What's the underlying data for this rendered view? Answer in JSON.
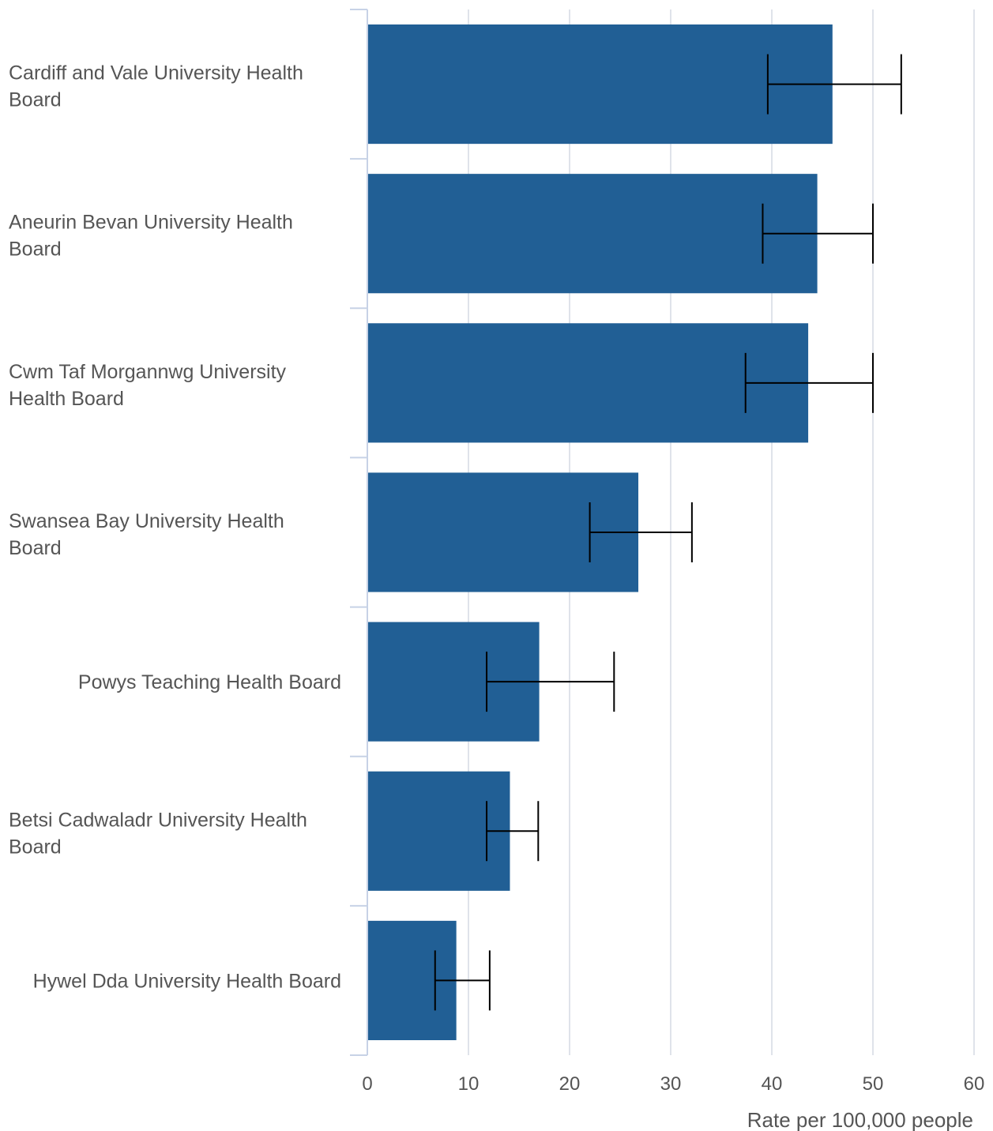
{
  "chart_data": {
    "type": "bar",
    "orientation": "horizontal",
    "categories": [
      [
        "Cardiff and Vale University Health",
        "Board"
      ],
      [
        "Aneurin Bevan University Health",
        "Board"
      ],
      [
        "Cwm Taf Morgannwg University",
        "Health Board"
      ],
      [
        "Swansea Bay University Health",
        "Board"
      ],
      [
        "Powys Teaching Health Board"
      ],
      [
        "Betsi Cadwaladr University Health",
        "Board"
      ],
      [
        "Hywel Dda University Health Board"
      ]
    ],
    "values": [
      46.0,
      44.5,
      43.6,
      26.8,
      17.0,
      14.1,
      8.8
    ],
    "error_low": [
      39.6,
      39.1,
      37.4,
      22.0,
      11.8,
      11.8,
      6.7
    ],
    "error_high": [
      52.8,
      50.0,
      50.0,
      32.1,
      24.4,
      16.9,
      12.1
    ],
    "xlim": [
      0,
      60
    ],
    "xticks": [
      0,
      10,
      20,
      30,
      40,
      50,
      60
    ],
    "xlabel": "Rate per 100,000 people",
    "grid": true,
    "colors": {
      "bar": "#215f95",
      "error_bar": "#000000",
      "grid": "#dfe3ea",
      "axis": "#c7d2e6",
      "text": "#555555"
    }
  }
}
